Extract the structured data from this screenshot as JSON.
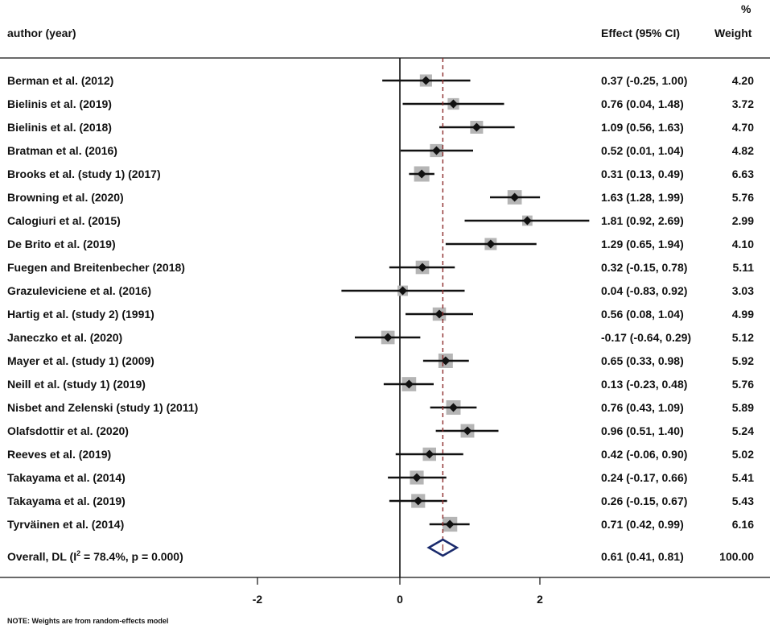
{
  "chart_data": {
    "type": "forest",
    "headers": {
      "study": "author (year)",
      "effect": "Effect (95% CI)",
      "weight_pct": "%",
      "weight": "Weight"
    },
    "studies": [
      {
        "label": "Berman et al.  (2012)",
        "effect": 0.37,
        "lo": -0.25,
        "hi": 1.0,
        "ci_text": "0.37 (-0.25, 1.00)",
        "weight": 4.2,
        "weight_text": "4.20"
      },
      {
        "label": "Bielinis et al. (2019)",
        "effect": 0.76,
        "lo": 0.04,
        "hi": 1.48,
        "ci_text": "0.76 (0.04, 1.48)",
        "weight": 3.72,
        "weight_text": "3.72"
      },
      {
        "label": "Bielinis et al.  (2018)",
        "effect": 1.09,
        "lo": 0.56,
        "hi": 1.63,
        "ci_text": "1.09 (0.56, 1.63)",
        "weight": 4.7,
        "weight_text": "4.70"
      },
      {
        "label": "Bratman et al. (2016)",
        "effect": 0.52,
        "lo": 0.01,
        "hi": 1.04,
        "ci_text": "0.52 (0.01, 1.04)",
        "weight": 4.82,
        "weight_text": "4.82"
      },
      {
        "label": "Brooks et al. (study 1) (2017)",
        "effect": 0.31,
        "lo": 0.13,
        "hi": 0.49,
        "ci_text": "0.31 (0.13, 0.49)",
        "weight": 6.63,
        "weight_text": "6.63"
      },
      {
        "label": "Browning et al. (2020)",
        "effect": 1.63,
        "lo": 1.28,
        "hi": 1.99,
        "ci_text": "1.63 (1.28, 1.99)",
        "weight": 5.76,
        "weight_text": "5.76"
      },
      {
        "label": "Calogiuri et al. (2015)",
        "effect": 1.81,
        "lo": 0.92,
        "hi": 2.69,
        "ci_text": "1.81 (0.92, 2.69)",
        "weight": 2.99,
        "weight_text": "2.99"
      },
      {
        "label": "De Brito et al. (2019)",
        "effect": 1.29,
        "lo": 0.65,
        "hi": 1.94,
        "ci_text": "1.29 (0.65, 1.94)",
        "weight": 4.1,
        "weight_text": "4.10"
      },
      {
        "label": "Fuegen and Breitenbecher (2018)",
        "effect": 0.32,
        "lo": -0.15,
        "hi": 0.78,
        "ci_text": "0.32 (-0.15, 0.78)",
        "weight": 5.11,
        "weight_text": "5.11"
      },
      {
        "label": "Grazuleviciene et al. (2016)",
        "effect": 0.04,
        "lo": -0.83,
        "hi": 0.92,
        "ci_text": "0.04 (-0.83, 0.92)",
        "weight": 3.03,
        "weight_text": "3.03"
      },
      {
        "label": "Hartig et al. (study 2) (1991)",
        "effect": 0.56,
        "lo": 0.08,
        "hi": 1.04,
        "ci_text": "0.56 (0.08, 1.04)",
        "weight": 4.99,
        "weight_text": "4.99"
      },
      {
        "label": "Janeczko et al. (2020)",
        "effect": -0.17,
        "lo": -0.64,
        "hi": 0.29,
        "ci_text": "-0.17 (-0.64, 0.29)",
        "weight": 5.12,
        "weight_text": "5.12"
      },
      {
        "label": "Mayer et al. (study 1) (2009)",
        "effect": 0.65,
        "lo": 0.33,
        "hi": 0.98,
        "ci_text": "0.65 (0.33, 0.98)",
        "weight": 5.92,
        "weight_text": "5.92"
      },
      {
        "label": "Neill et al. (study 1) (2019)",
        "effect": 0.13,
        "lo": -0.23,
        "hi": 0.48,
        "ci_text": "0.13 (-0.23, 0.48)",
        "weight": 5.76,
        "weight_text": "5.76"
      },
      {
        "label": "Nisbet and Zelenski (study 1) (2011)",
        "effect": 0.76,
        "lo": 0.43,
        "hi": 1.09,
        "ci_text": "0.76 (0.43, 1.09)",
        "weight": 5.89,
        "weight_text": "5.89"
      },
      {
        "label": "Olafsdottir et al. (2020)",
        "effect": 0.96,
        "lo": 0.51,
        "hi": 1.4,
        "ci_text": "0.96 (0.51, 1.40)",
        "weight": 5.24,
        "weight_text": "5.24"
      },
      {
        "label": "Reeves et al. (2019)",
        "effect": 0.42,
        "lo": -0.06,
        "hi": 0.9,
        "ci_text": "0.42 (-0.06, 0.90)",
        "weight": 5.02,
        "weight_text": "5.02"
      },
      {
        "label": "Takayama et al. (2014)",
        "effect": 0.24,
        "lo": -0.17,
        "hi": 0.66,
        "ci_text": "0.24 (-0.17, 0.66)",
        "weight": 5.41,
        "weight_text": "5.41"
      },
      {
        "label": "Takayama et al. (2019)",
        "effect": 0.26,
        "lo": -0.15,
        "hi": 0.67,
        "ci_text": "0.26 (-0.15, 0.67)",
        "weight": 5.43,
        "weight_text": "5.43"
      },
      {
        "label": "Tyrväinen et al.  (2014)",
        "effect": 0.71,
        "lo": 0.42,
        "hi": 0.99,
        "ci_text": "0.71 (0.42, 0.99)",
        "weight": 6.16,
        "weight_text": "6.16"
      }
    ],
    "overall": {
      "label_prefix": "Overall, DL (I",
      "label_sup": "2",
      "label_suffix": " = 78.4%, p = 0.000)",
      "effect": 0.61,
      "lo": 0.41,
      "hi": 0.81,
      "ci_text": "0.61 (0.41, 0.81)",
      "weight_text": "100.00"
    },
    "x_axis": {
      "ticks": [
        -2,
        0,
        2
      ],
      "tick_labels": [
        "-2",
        "0",
        "2"
      ],
      "range": [
        -4.08,
        3.3
      ]
    },
    "null_line": 0,
    "note": "NOTE: Weights are from random-effects model",
    "colors": {
      "marker": "#111111",
      "weight_box": "#b5b5b5",
      "overall_diamond": "#1a2a6c",
      "overall_line": "#8b2a2a"
    }
  }
}
